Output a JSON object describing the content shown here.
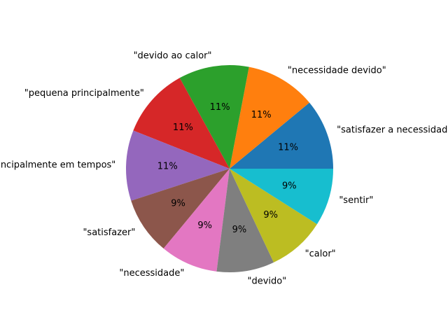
{
  "chart_data": {
    "type": "pie",
    "title": "",
    "start_angle_deg": 0,
    "direction": "counterclockwise",
    "slices": [
      {
        "label": "\"satisfazer a necessidade\"",
        "value": 11,
        "pct_label": "11%",
        "color": "#1f77b4"
      },
      {
        "label": "\"necessidade devido\"",
        "value": 11,
        "pct_label": "11%",
        "color": "#ff7f0e"
      },
      {
        "label": "\"devido ao calor\"",
        "value": 11,
        "pct_label": "11%",
        "color": "#2ca02c"
      },
      {
        "label": "\"pequena principalmente\"",
        "value": 11,
        "pct_label": "11%",
        "color": "#d62728"
      },
      {
        "label": "\"principalmente em tempos\"",
        "value": 11,
        "pct_label": "11%",
        "color": "#9467bd"
      },
      {
        "label": "\"satisfazer\"",
        "value": 9,
        "pct_label": "9%",
        "color": "#8c564b"
      },
      {
        "label": "\"necessidade\"",
        "value": 9,
        "pct_label": "9%",
        "color": "#e377c2"
      },
      {
        "label": "\"devido\"",
        "value": 9,
        "pct_label": "9%",
        "color": "#7f7f7f"
      },
      {
        "label": "\"calor\"",
        "value": 9,
        "pct_label": "9%",
        "color": "#bcbd22"
      },
      {
        "label": "\"sentir\"",
        "value": 9,
        "pct_label": "9%",
        "color": "#17becf"
      }
    ]
  }
}
